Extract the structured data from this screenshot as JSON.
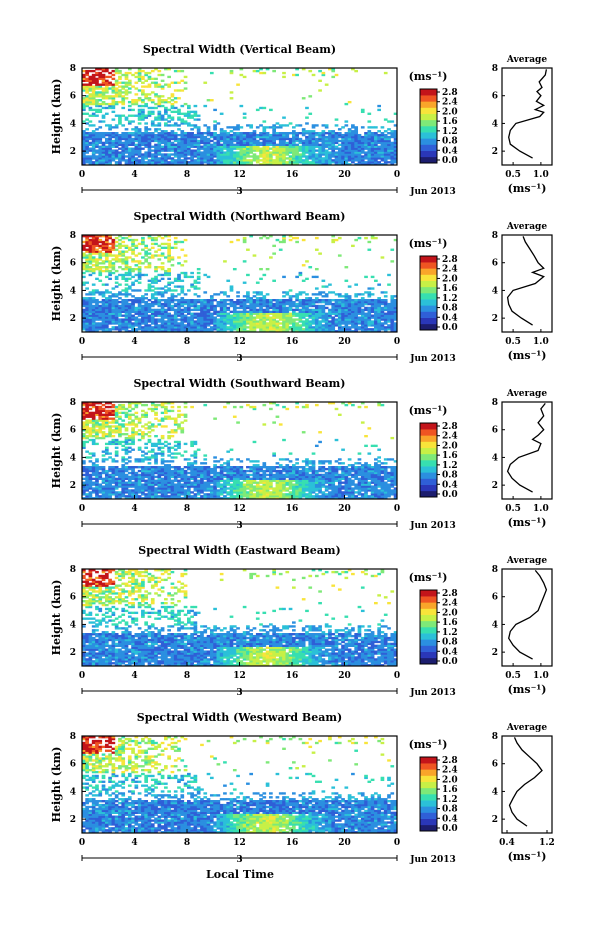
{
  "figure": {
    "colorbar_unit": "(ms⁻¹)",
    "colorbar_ticks": [
      "0.0",
      "0.4",
      "0.8",
      "1.2",
      "1.6",
      "2.0",
      "2.4",
      "2.8"
    ],
    "x_ticks": [
      "0",
      "4",
      "8",
      "12",
      "16",
      "20",
      "0"
    ],
    "date_label": "Jun 2013",
    "x_axis_title": "Local Time",
    "y_label": "Height (km)",
    "y_ticks": [
      "2",
      "4",
      "6",
      "8"
    ],
    "avg_title": "Average",
    "avg_unit": "(ms⁻¹)",
    "colormap": [
      "#1c1d6e",
      "#2a37b8",
      "#2f5fd7",
      "#2b8fe0",
      "#2bc0d8",
      "#37dfb0",
      "#7ee978",
      "#c7f046",
      "#f8e43a",
      "#f9a52a",
      "#ef5522",
      "#c3141a"
    ]
  },
  "chart_data": [
    {
      "type": "heatmap",
      "title": "Spectral Width (Vertical Beam)",
      "xlim": [
        0,
        24
      ],
      "ylim": [
        1,
        8
      ],
      "day_marker": "3",
      "avg_profile": {
        "xticks": [
          "0.5",
          "1.0"
        ],
        "xlim": [
          0.3,
          1.2
        ],
        "height": [
          1.5,
          2.0,
          2.5,
          3.0,
          3.5,
          4.0,
          4.5,
          4.8,
          5.0,
          5.3,
          5.6,
          6.0,
          6.3,
          6.6,
          7.0,
          7.5,
          7.9
        ],
        "value": [
          0.85,
          0.62,
          0.45,
          0.42,
          0.45,
          0.55,
          0.98,
          1.05,
          0.9,
          1.05,
          0.92,
          1.0,
          0.93,
          1.02,
          0.97,
          1.08,
          1.1
        ]
      }
    },
    {
      "type": "heatmap",
      "title": "Spectral Width (Northward Beam)",
      "xlim": [
        0,
        24
      ],
      "ylim": [
        1,
        8
      ],
      "day_marker": "3",
      "avg_profile": {
        "xticks": [
          "0.5",
          "1.0"
        ],
        "xlim": [
          0.3,
          1.2
        ],
        "height": [
          1.5,
          2.0,
          2.5,
          3.0,
          3.5,
          4.0,
          4.5,
          5.0,
          5.3,
          5.6,
          6.0,
          6.5,
          7.0,
          7.5,
          7.9
        ],
        "value": [
          0.85,
          0.65,
          0.48,
          0.42,
          0.4,
          0.5,
          0.9,
          1.05,
          0.85,
          1.05,
          0.95,
          0.88,
          0.8,
          0.72,
          0.68
        ]
      }
    },
    {
      "type": "heatmap",
      "title": "Spectral Width (Southward Beam)",
      "xlim": [
        0,
        24
      ],
      "ylim": [
        1,
        8
      ],
      "day_marker": "3",
      "avg_profile": {
        "xticks": [
          "0.5",
          "1.0"
        ],
        "xlim": [
          0.3,
          1.2
        ],
        "height": [
          1.5,
          2.0,
          2.5,
          3.0,
          3.5,
          4.0,
          4.5,
          5.0,
          5.3,
          5.6,
          6.0,
          6.5,
          7.0,
          7.5,
          7.9
        ],
        "value": [
          0.85,
          0.62,
          0.48,
          0.4,
          0.45,
          0.6,
          0.95,
          1.0,
          0.85,
          0.95,
          1.05,
          0.95,
          1.05,
          1.0,
          1.08
        ]
      }
    },
    {
      "type": "heatmap",
      "title": "Spectral Width (Eastward Beam)",
      "xlim": [
        0,
        24
      ],
      "ylim": [
        1,
        8
      ],
      "day_marker": "3",
      "avg_profile": {
        "xticks": [
          "0.5",
          "1.0"
        ],
        "xlim": [
          0.3,
          1.2
        ],
        "height": [
          1.5,
          2.0,
          2.5,
          3.0,
          3.5,
          4.0,
          4.5,
          5.0,
          5.5,
          6.0,
          6.5,
          7.0,
          7.5,
          7.9
        ],
        "value": [
          0.85,
          0.62,
          0.5,
          0.42,
          0.45,
          0.55,
          0.8,
          0.95,
          1.0,
          1.05,
          1.1,
          1.05,
          0.98,
          0.9
        ]
      }
    },
    {
      "type": "heatmap",
      "title": "Spectral Width (Westward Beam)",
      "xlim": [
        0,
        24
      ],
      "ylim": [
        1,
        8
      ],
      "day_marker": "3",
      "avg_profile": {
        "xticks": [
          "0.4",
          "1.2"
        ],
        "xlim": [
          0.3,
          1.3
        ],
        "height": [
          1.5,
          2.0,
          2.5,
          3.0,
          3.5,
          4.0,
          4.5,
          5.0,
          5.5,
          6.0,
          6.5,
          7.0,
          7.5,
          7.9
        ],
        "value": [
          0.8,
          0.6,
          0.5,
          0.45,
          0.52,
          0.6,
          0.75,
          0.95,
          1.1,
          1.0,
          0.85,
          0.7,
          0.6,
          0.55
        ]
      }
    }
  ]
}
